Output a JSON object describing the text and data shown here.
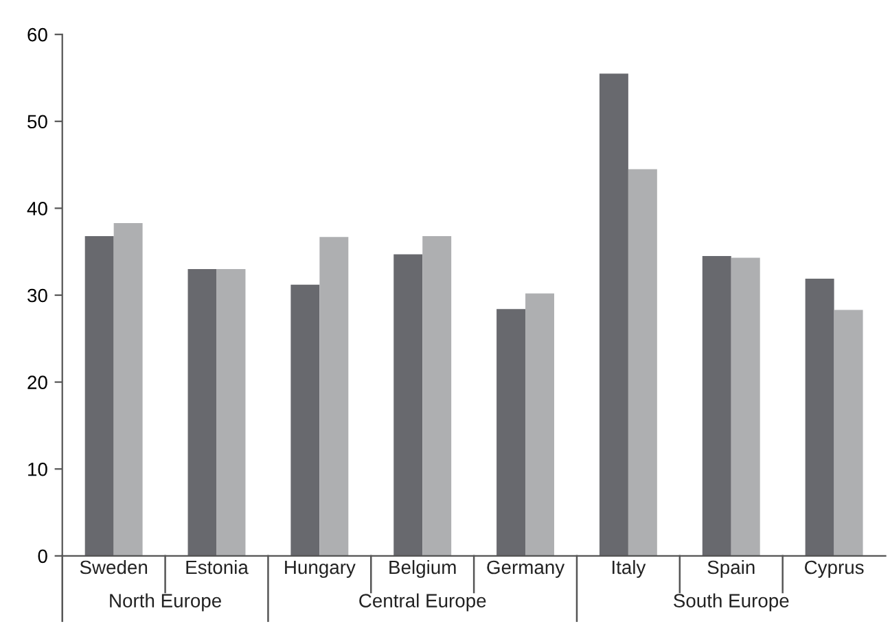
{
  "chart_data": {
    "type": "bar",
    "categories": [
      "Sweden",
      "Estonia",
      "Hungary",
      "Belgium",
      "Germany",
      "Italy",
      "Spain",
      "Cyprus"
    ],
    "series": [
      {
        "color": "#68696e",
        "values": [
          36.8,
          33.0,
          31.2,
          34.7,
          28.4,
          55.5,
          34.5,
          31.9
        ]
      },
      {
        "color": "#aeafb1",
        "values": [
          38.3,
          33.0,
          36.7,
          36.8,
          30.2,
          44.5,
          34.3,
          28.3
        ]
      }
    ],
    "ylim": [
      0,
      60
    ],
    "yticks": [
      0,
      10,
      20,
      30,
      40,
      50,
      60
    ],
    "grid": false,
    "legend": false,
    "annotations": [
      "North Europe",
      "Central Europe",
      "South Europe"
    ]
  }
}
